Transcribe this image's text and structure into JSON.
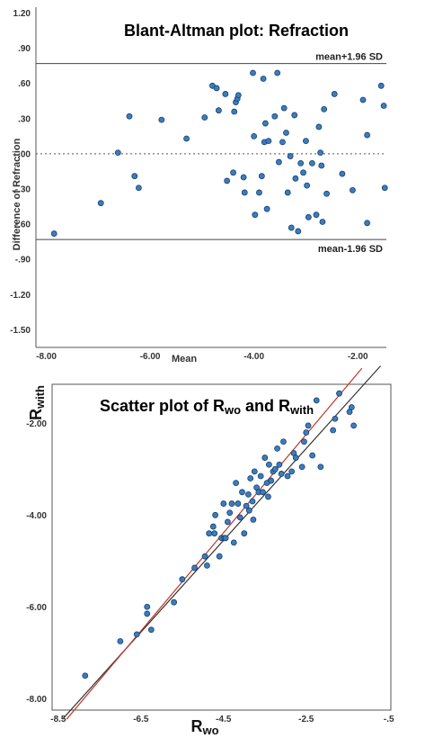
{
  "chart_data": [
    {
      "type": "scatter",
      "title": "Blant-Altman plot: Refraction",
      "xlabel": "Mean",
      "ylabel": "Difference of Refraction",
      "xlim": [
        -8.2,
        -1.45
      ],
      "ylim": [
        -1.65,
        1.25
      ],
      "x_ticks": [
        -8.0,
        -6.0,
        -4.0,
        -2.0
      ],
      "x_tick_labels": [
        "-8.00",
        "-6.00",
        "-4.00",
        "-2.00"
      ],
      "y_ticks": [
        1.2,
        0.9,
        0.6,
        0.3,
        0.0,
        -0.3,
        -0.6,
        -0.9,
        -1.2,
        -1.5
      ],
      "y_tick_labels": [
        "1.20",
        ".90",
        ".60",
        ".30",
        ".00",
        "-.30",
        "-.60",
        "-.90",
        "-1.20",
        "-1.50"
      ],
      "reference_lines": [
        {
          "label": "mean+1.96 SD",
          "y": 0.77,
          "style": "solid"
        },
        {
          "label": "",
          "y": 0.0,
          "style": "dotted"
        },
        {
          "label": "mean-1.96 SD",
          "y": -0.73,
          "style": "solid"
        }
      ],
      "marker_color": "#3a7dc0",
      "points": [
        {
          "x": -7.85,
          "y": -0.68
        },
        {
          "x": -6.95,
          "y": -0.42
        },
        {
          "x": -6.62,
          "y": 0.01
        },
        {
          "x": -6.4,
          "y": 0.32
        },
        {
          "x": -6.3,
          "y": -0.19
        },
        {
          "x": -6.22,
          "y": -0.29
        },
        {
          "x": -5.78,
          "y": 0.29
        },
        {
          "x": -5.3,
          "y": 0.13
        },
        {
          "x": -4.95,
          "y": 0.31
        },
        {
          "x": -4.8,
          "y": 0.58
        },
        {
          "x": -4.72,
          "y": 0.56
        },
        {
          "x": -4.68,
          "y": 0.37
        },
        {
          "x": -4.55,
          "y": 0.51
        },
        {
          "x": -4.52,
          "y": -0.23
        },
        {
          "x": -4.4,
          "y": -0.16
        },
        {
          "x": -4.38,
          "y": 0.36
        },
        {
          "x": -4.35,
          "y": 0.44
        },
        {
          "x": -4.32,
          "y": 0.47
        },
        {
          "x": -4.3,
          "y": 0.5
        },
        {
          "x": -4.2,
          "y": -0.2
        },
        {
          "x": -4.18,
          "y": -0.33
        },
        {
          "x": -4.02,
          "y": 0.69
        },
        {
          "x": -4.0,
          "y": 0.15
        },
        {
          "x": -3.98,
          "y": -0.52
        },
        {
          "x": -3.9,
          "y": -0.33
        },
        {
          "x": -3.85,
          "y": -0.19
        },
        {
          "x": -3.82,
          "y": 0.64
        },
        {
          "x": -3.8,
          "y": 0.1
        },
        {
          "x": -3.78,
          "y": 0.26
        },
        {
          "x": -3.75,
          "y": -0.47
        },
        {
          "x": -3.72,
          "y": 0.11
        },
        {
          "x": -3.6,
          "y": 0.32
        },
        {
          "x": -3.55,
          "y": 0.69
        },
        {
          "x": -3.52,
          "y": -0.07
        },
        {
          "x": -3.45,
          "y": 0.1
        },
        {
          "x": -3.42,
          "y": 0.39
        },
        {
          "x": -3.38,
          "y": 0.18
        },
        {
          "x": -3.35,
          "y": -0.33
        },
        {
          "x": -3.3,
          "y": -0.02
        },
        {
          "x": -3.28,
          "y": -0.63
        },
        {
          "x": -3.22,
          "y": 0.33
        },
        {
          "x": -3.2,
          "y": -0.21
        },
        {
          "x": -3.15,
          "y": -0.66
        },
        {
          "x": -3.1,
          "y": -0.08
        },
        {
          "x": -3.05,
          "y": -0.16
        },
        {
          "x": -3.0,
          "y": 0.11
        },
        {
          "x": -2.98,
          "y": -0.27
        },
        {
          "x": -2.95,
          "y": -0.54
        },
        {
          "x": -2.88,
          "y": -0.08
        },
        {
          "x": -2.8,
          "y": -0.52
        },
        {
          "x": -2.75,
          "y": 0.23
        },
        {
          "x": -2.72,
          "y": 0.01
        },
        {
          "x": -2.7,
          "y": -0.1
        },
        {
          "x": -2.68,
          "y": -0.58
        },
        {
          "x": -2.65,
          "y": 0.38
        },
        {
          "x": -2.6,
          "y": -0.34
        },
        {
          "x": -2.45,
          "y": 0.51
        },
        {
          "x": -2.3,
          "y": -0.17
        },
        {
          "x": -2.1,
          "y": -0.31
        },
        {
          "x": -1.9,
          "y": 0.46
        },
        {
          "x": -1.82,
          "y": 0.16
        },
        {
          "x": -1.82,
          "y": -0.59
        },
        {
          "x": -1.55,
          "y": 0.58
        },
        {
          "x": -1.5,
          "y": 0.41
        },
        {
          "x": -1.48,
          "y": -0.29
        }
      ]
    },
    {
      "type": "scatter",
      "title": "Scatter plot of R_wo and R_with",
      "title_parts": [
        "Scatter plot of R",
        "wo",
        " and R",
        "with"
      ],
      "xlabel_parts": [
        "R",
        "wo"
      ],
      "ylabel_parts": [
        "R",
        "with"
      ],
      "xlim": [
        -8.65,
        -0.45
      ],
      "ylim": [
        -8.25,
        -1.15
      ],
      "x_ticks": [
        -8.5,
        -6.5,
        -4.5,
        -2.5,
        -0.5
      ],
      "x_tick_labels": [
        "-8.5",
        "-6.5",
        "-4.5",
        "-2.5",
        "-.5"
      ],
      "y_ticks": [
        -2.0,
        -4.0,
        -6.0,
        -8.0
      ],
      "y_tick_labels": [
        "-2.00",
        "-4.00",
        "-6.00",
        "-8.00"
      ],
      "marker_color": "#3a7dc0",
      "lines": [
        {
          "name": "",
          "color": "#333333",
          "from": [
            -8.4,
            -8.45
          ],
          "to": [
            -0.7,
            -0.75
          ]
        },
        {
          "name": "",
          "color": "#c0392b",
          "from": [
            -8.3,
            -8.45
          ],
          "to": [
            -1.15,
            -0.8
          ]
        }
      ],
      "points": [
        {
          "x": -7.85,
          "y": -7.5
        },
        {
          "x": -7.0,
          "y": -6.75
        },
        {
          "x": -6.6,
          "y": -6.6
        },
        {
          "x": -6.35,
          "y": -6.0
        },
        {
          "x": -6.35,
          "y": -6.15
        },
        {
          "x": -6.25,
          "y": -6.5
        },
        {
          "x": -5.7,
          "y": -5.9
        },
        {
          "x": -5.5,
          "y": -5.4
        },
        {
          "x": -5.2,
          "y": -5.15
        },
        {
          "x": -4.95,
          "y": -4.9
        },
        {
          "x": -4.9,
          "y": -5.1
        },
        {
          "x": -4.85,
          "y": -4.4
        },
        {
          "x": -4.75,
          "y": -4.25
        },
        {
          "x": -4.72,
          "y": -4.4
        },
        {
          "x": -4.7,
          "y": -4.0
        },
        {
          "x": -4.6,
          "y": -4.9
        },
        {
          "x": -4.55,
          "y": -4.5
        },
        {
          "x": -4.5,
          "y": -3.75
        },
        {
          "x": -4.48,
          "y": -4.5
        },
        {
          "x": -4.45,
          "y": -4.5
        },
        {
          "x": -4.4,
          "y": -4.15
        },
        {
          "x": -4.35,
          "y": -3.95
        },
        {
          "x": -4.3,
          "y": -3.75
        },
        {
          "x": -4.25,
          "y": -4.6
        },
        {
          "x": -4.2,
          "y": -3.3
        },
        {
          "x": -4.15,
          "y": -3.75
        },
        {
          "x": -4.1,
          "y": -4.05
        },
        {
          "x": -4.05,
          "y": -3.5
        },
        {
          "x": -4.0,
          "y": -4.4
        },
        {
          "x": -3.95,
          "y": -3.8
        },
        {
          "x": -3.9,
          "y": -3.55
        },
        {
          "x": -3.88,
          "y": -3.9
        },
        {
          "x": -3.85,
          "y": -3.2
        },
        {
          "x": -3.8,
          "y": -3.7
        },
        {
          "x": -3.78,
          "y": -4.1
        },
        {
          "x": -3.75,
          "y": -3.05
        },
        {
          "x": -3.7,
          "y": -3.4
        },
        {
          "x": -3.65,
          "y": -3.5
        },
        {
          "x": -3.6,
          "y": -3.15
        },
        {
          "x": -3.55,
          "y": -3.5
        },
        {
          "x": -3.5,
          "y": -2.75
        },
        {
          "x": -3.45,
          "y": -3.3
        },
        {
          "x": -3.42,
          "y": -3.6
        },
        {
          "x": -3.4,
          "y": -2.9
        },
        {
          "x": -3.35,
          "y": -3.25
        },
        {
          "x": -3.3,
          "y": -3.05
        },
        {
          "x": -3.25,
          "y": -3.0
        },
        {
          "x": -3.2,
          "y": -2.55
        },
        {
          "x": -3.15,
          "y": -2.9
        },
        {
          "x": -3.1,
          "y": -3.1
        },
        {
          "x": -3.05,
          "y": -2.4
        },
        {
          "x": -2.95,
          "y": -3.15
        },
        {
          "x": -2.85,
          "y": -3.05
        },
        {
          "x": -2.8,
          "y": -2.65
        },
        {
          "x": -2.75,
          "y": -2.75
        },
        {
          "x": -2.6,
          "y": -2.95
        },
        {
          "x": -2.55,
          "y": -2.4
        },
        {
          "x": -2.5,
          "y": -2.2
        },
        {
          "x": -2.45,
          "y": -2.05
        },
        {
          "x": -2.35,
          "y": -2.7
        },
        {
          "x": -2.25,
          "y": -1.5
        },
        {
          "x": -2.15,
          "y": -2.95
        },
        {
          "x": -1.85,
          "y": -2.15
        },
        {
          "x": -1.8,
          "y": -1.9
        },
        {
          "x": -1.7,
          "y": -1.35
        },
        {
          "x": -1.45,
          "y": -1.75
        },
        {
          "x": -1.4,
          "y": -1.65
        },
        {
          "x": -1.35,
          "y": -2.05
        }
      ]
    }
  ]
}
